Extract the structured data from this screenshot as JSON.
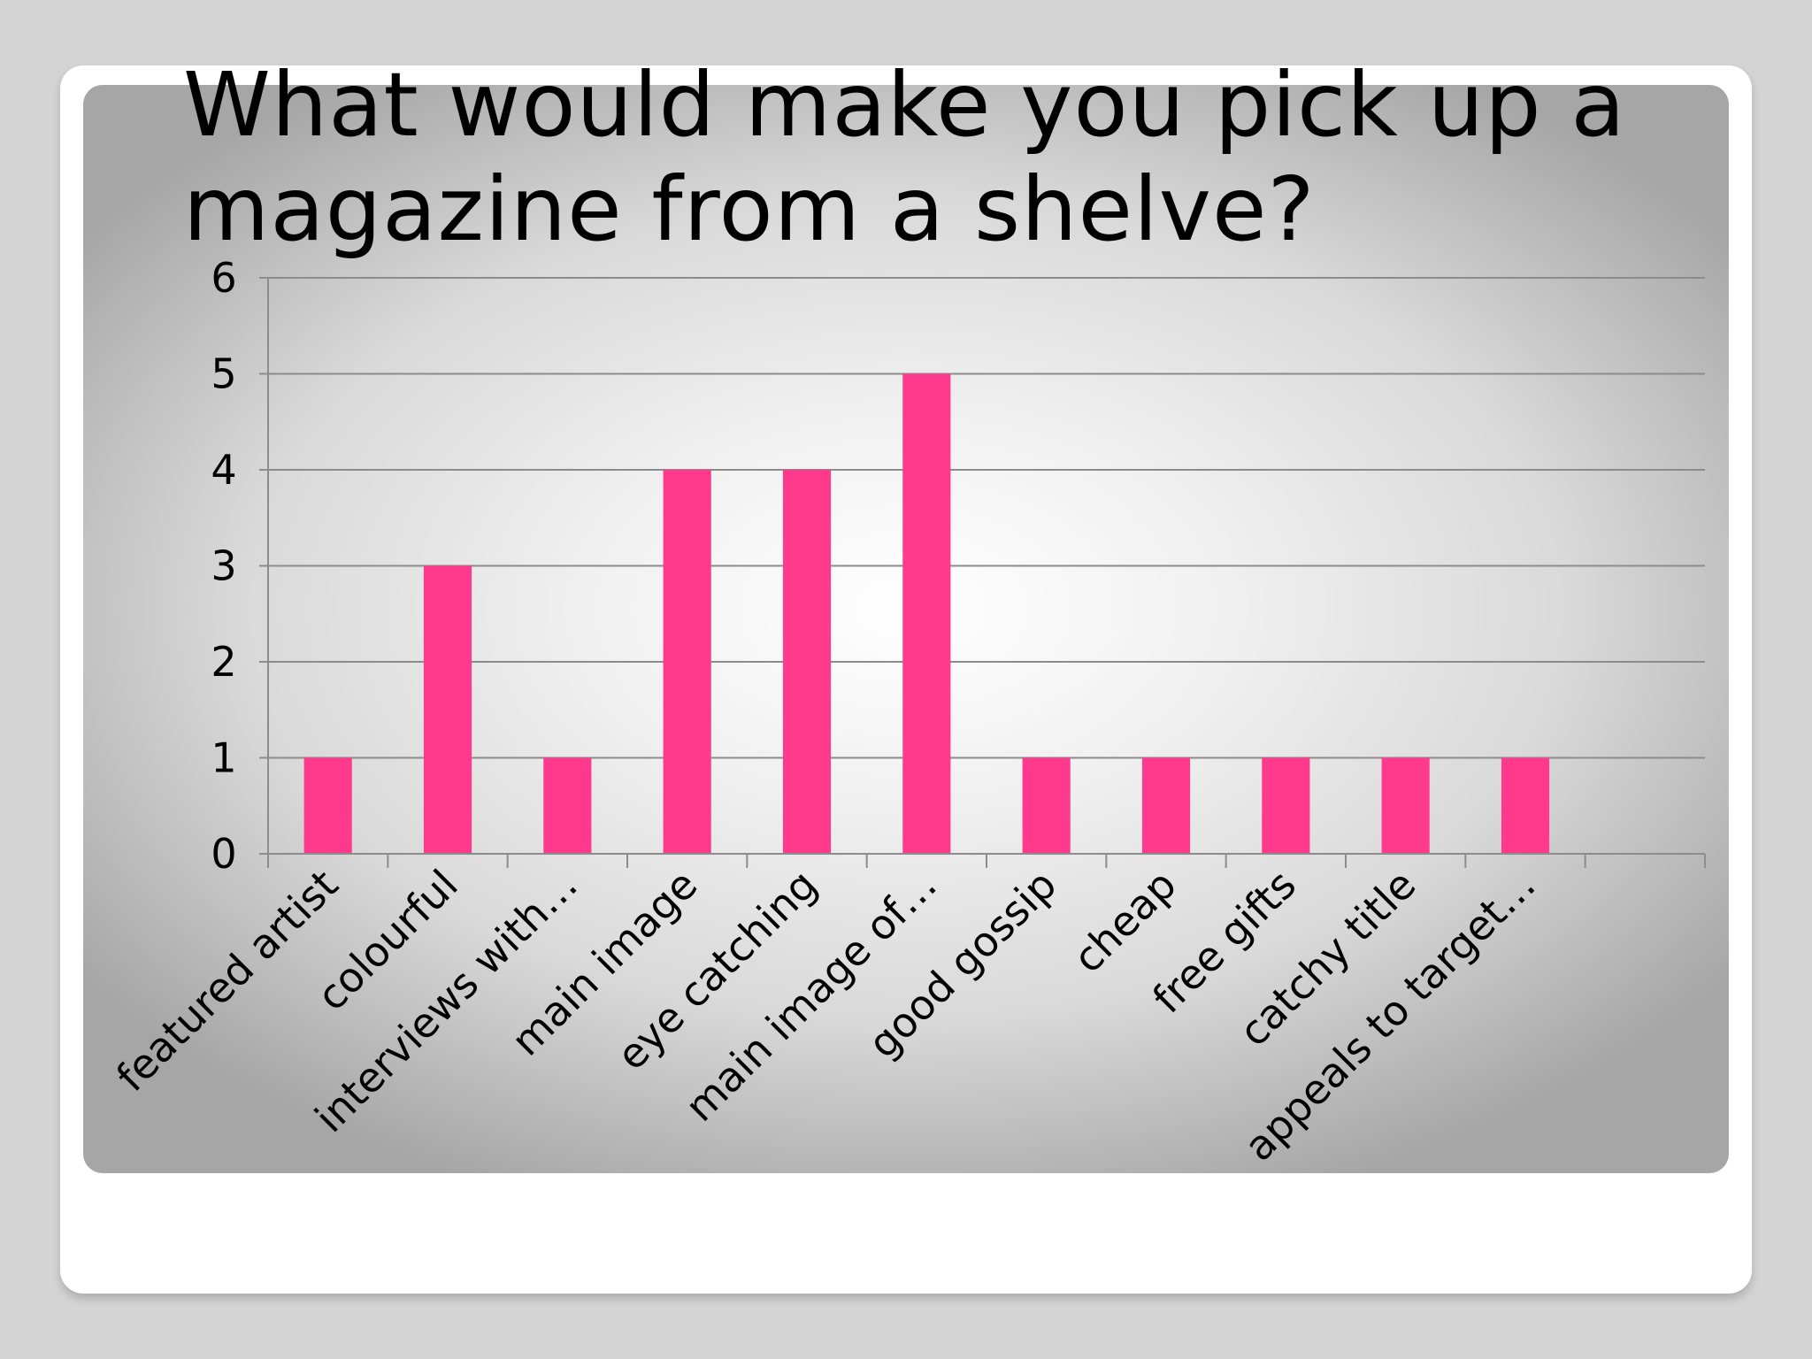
{
  "slide": {
    "title": "What would make you pick up a magazine from a shelve?"
  },
  "chart_data": {
    "type": "bar",
    "title": "",
    "xlabel": "",
    "ylabel": "",
    "categories": [
      "featured artist",
      "colourful",
      "interviews with…",
      "main image",
      "eye catching",
      "main image of…",
      "good gossip",
      "cheap",
      "free gifts",
      "catchy title",
      "appeals to target…",
      ""
    ],
    "values": [
      1,
      3,
      1,
      4,
      4,
      5,
      1,
      1,
      1,
      1,
      1,
      0
    ],
    "ylim": [
      0,
      6
    ],
    "yticks": [
      "0",
      "1",
      "2",
      "3",
      "4",
      "5",
      "6"
    ],
    "grid": true,
    "legend": "none",
    "bar_color": "#ff3a8c",
    "gridline_color": "#8c8c8c"
  }
}
